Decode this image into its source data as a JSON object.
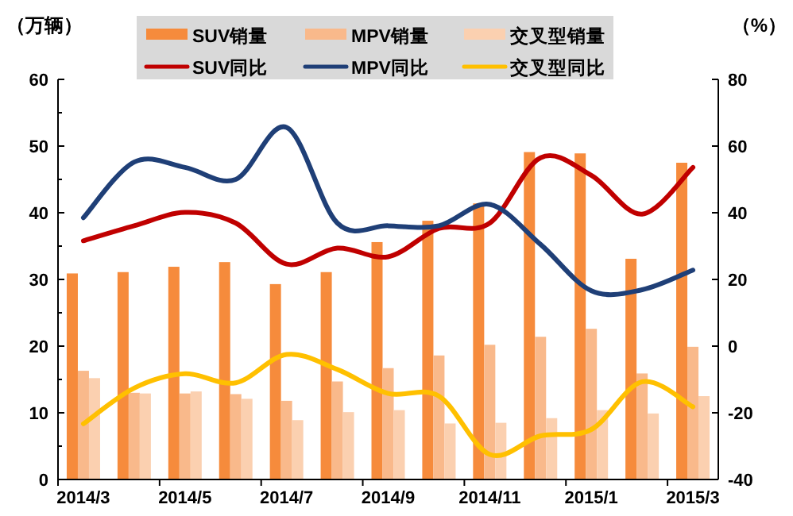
{
  "chart_data": {
    "type": "bar",
    "ylabel": "（万辆）",
    "y2label": "（%）",
    "legend": "top",
    "grid": false,
    "categories": [
      "2014/3",
      null,
      "2014/5",
      null,
      "2014/7",
      null,
      "2014/9",
      null,
      "2014/11",
      null,
      "2015/1",
      null,
      "2015/3"
    ],
    "ylim": [
      0,
      60
    ],
    "yticks": [
      0,
      10,
      20,
      30,
      40,
      50,
      60
    ],
    "y2lim": [
      -40,
      80
    ],
    "y2ticks": [
      -40,
      -20,
      0,
      20,
      40,
      60,
      80
    ],
    "series": [
      {
        "name": "SUV销量",
        "color": "#f68b3c",
        "values": [
          30.9,
          31.1,
          31.9,
          32.6,
          29.3,
          31.1,
          35.6,
          38.8,
          41.4,
          49.1,
          48.9,
          33.1,
          47.5
        ]
      },
      {
        "name": "MPV销量",
        "color": "#f9b98b",
        "values": [
          16.3,
          13.0,
          12.9,
          12.8,
          11.8,
          14.7,
          16.7,
          18.6,
          20.2,
          21.4,
          22.6,
          15.9,
          19.9
        ]
      },
      {
        "name": "交叉型销量",
        "color": "#fbd0b0",
        "values": [
          15.2,
          12.9,
          13.2,
          12.1,
          8.9,
          10.1,
          10.4,
          8.4,
          8.5,
          9.2,
          10.4,
          9.9,
          12.5
        ]
      },
      {
        "name": "SUV同比",
        "type": "line",
        "axis": "y2",
        "color": "#c00000",
        "values": [
          31.6,
          36.1,
          40.1,
          36.9,
          24.6,
          29.4,
          26.8,
          35.3,
          36.9,
          56.5,
          51.2,
          39.6,
          53.6
        ]
      },
      {
        "name": "MPV同比",
        "type": "line",
        "axis": "y2",
        "color": "#1f3f77",
        "values": [
          38.5,
          55.2,
          53.6,
          50.0,
          65.6,
          36.9,
          36.1,
          36.1,
          42.5,
          30.5,
          16.6,
          16.9,
          22.8
        ]
      },
      {
        "name": "交叉型同比",
        "type": "line",
        "axis": "y2",
        "color": "#ffc000",
        "values": [
          -23.3,
          -12.6,
          -8.3,
          -11.0,
          -2.5,
          -7.0,
          -14.2,
          -15.0,
          -32.5,
          -26.9,
          -25.0,
          -10.7,
          -18.2
        ]
      }
    ]
  }
}
